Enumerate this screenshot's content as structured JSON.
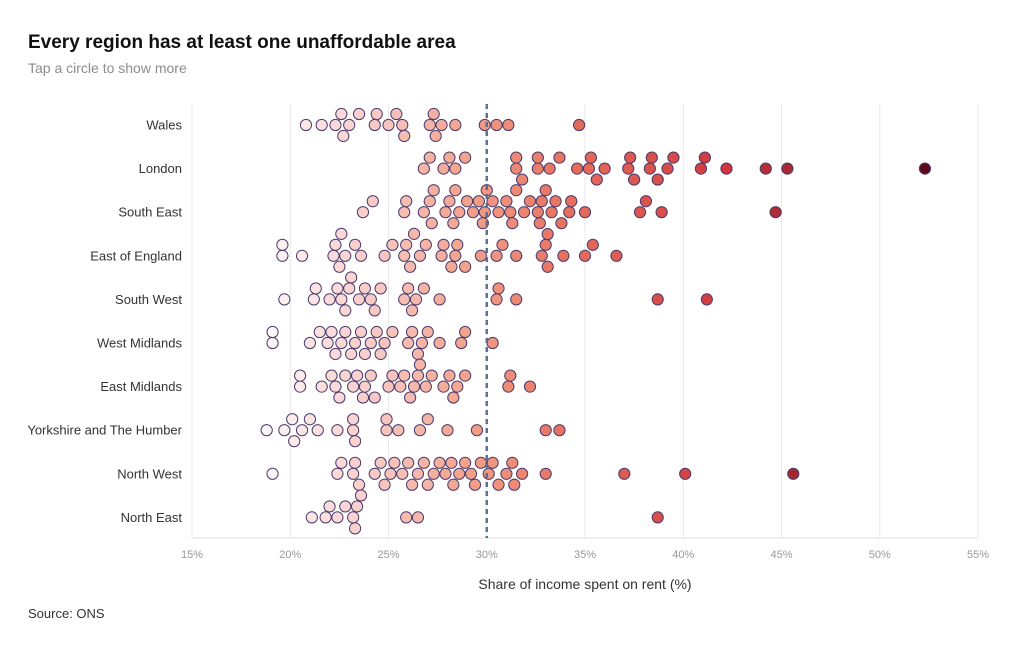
{
  "title": "Every region has at least one unaffordable area",
  "subtitle": "Tap a circle to show more",
  "source": "Source: ONS",
  "chart_data": {
    "type": "scatter",
    "title": "Every region has at least one unaffordable area",
    "xlabel": "Share of income spent on rent (%)",
    "ylabel": "",
    "xlim": [
      15,
      55
    ],
    "xticks": [
      15,
      20,
      25,
      30,
      35,
      40,
      45,
      50,
      55
    ],
    "xtick_labels": [
      "15%",
      "20%",
      "25%",
      "30%",
      "35%",
      "40%",
      "45%",
      "50%",
      "55%"
    ],
    "threshold": 30,
    "grid": true,
    "color_scale": [
      "#ffffff",
      "#f7c6c2",
      "#f2a285",
      "#e8705e",
      "#d03a3e",
      "#5c0a19"
    ],
    "regions": [
      {
        "name": "Wales",
        "values": [
          20.8,
          21.6,
          22.3,
          22.6,
          22.7,
          23.0,
          23.5,
          24.3,
          24.4,
          25.0,
          25.4,
          25.7,
          25.8,
          27.1,
          27.3,
          27.4,
          27.7,
          28.4,
          29.9,
          30.5,
          31.1,
          34.7
        ]
      },
      {
        "name": "London",
        "values": [
          26.8,
          27.1,
          27.8,
          28.1,
          28.4,
          28.9,
          31.5,
          31.5,
          31.8,
          32.6,
          32.6,
          33.2,
          33.7,
          34.6,
          35.2,
          35.3,
          35.6,
          36.0,
          37.2,
          37.3,
          37.5,
          38.3,
          38.4,
          38.7,
          39.2,
          39.5,
          40.9,
          41.1,
          42.2,
          44.2,
          45.3,
          52.3
        ]
      },
      {
        "name": "South East",
        "values": [
          23.7,
          24.2,
          25.8,
          25.9,
          26.8,
          27.1,
          27.2,
          27.3,
          27.9,
          28.1,
          28.3,
          28.4,
          28.6,
          29.0,
          29.3,
          29.6,
          29.8,
          29.9,
          30.0,
          30.3,
          30.6,
          31.0,
          31.2,
          31.3,
          31.5,
          31.9,
          32.2,
          32.6,
          32.7,
          32.8,
          33.0,
          33.1,
          33.3,
          33.5,
          33.8,
          34.2,
          34.3,
          35.0,
          37.8,
          38.1,
          38.9,
          44.7
        ]
      },
      {
        "name": "East of England",
        "values": [
          19.6,
          19.6,
          20.6,
          22.2,
          22.3,
          22.5,
          22.6,
          22.8,
          23.3,
          23.6,
          24.8,
          25.2,
          25.8,
          25.9,
          26.1,
          26.3,
          26.6,
          26.9,
          27.7,
          27.8,
          28.2,
          28.4,
          28.5,
          28.9,
          29.7,
          30.5,
          30.8,
          31.5,
          32.8,
          33.0,
          33.1,
          33.9,
          35.0,
          35.4,
          36.6
        ]
      },
      {
        "name": "South West",
        "values": [
          19.7,
          21.2,
          21.3,
          22.0,
          22.4,
          22.6,
          22.8,
          23.0,
          23.1,
          23.5,
          23.8,
          24.1,
          24.3,
          24.6,
          25.8,
          26.0,
          26.2,
          26.4,
          26.8,
          27.6,
          30.6,
          30.5,
          31.5,
          38.7,
          41.2
        ]
      },
      {
        "name": "West Midlands",
        "values": [
          19.1,
          19.1,
          21.0,
          21.5,
          21.9,
          22.1,
          22.3,
          22.6,
          22.8,
          23.1,
          23.3,
          23.6,
          23.8,
          24.1,
          24.4,
          24.6,
          24.8,
          25.2,
          26.0,
          26.2,
          26.5,
          26.7,
          27.0,
          27.6,
          28.7,
          28.9,
          30.3
        ]
      },
      {
        "name": "East Midlands",
        "values": [
          20.5,
          20.5,
          21.6,
          22.1,
          22.3,
          22.5,
          22.8,
          23.2,
          23.4,
          23.7,
          23.8,
          24.1,
          24.3,
          25.0,
          25.2,
          25.6,
          25.8,
          26.1,
          26.3,
          26.5,
          26.6,
          26.9,
          27.2,
          27.8,
          28.1,
          28.3,
          28.5,
          28.9,
          31.1,
          31.2,
          32.2
        ]
      },
      {
        "name": "Yorkshire and The Humber",
        "values": [
          18.8,
          19.7,
          20.1,
          20.2,
          20.6,
          21.0,
          21.4,
          22.4,
          23.2,
          23.2,
          23.3,
          24.9,
          24.9,
          25.5,
          26.6,
          27.0,
          28.0,
          29.5,
          33.0,
          33.7
        ]
      },
      {
        "name": "North West",
        "values": [
          19.1,
          22.4,
          22.6,
          23.2,
          23.3,
          23.5,
          24.3,
          24.6,
          24.8,
          25.1,
          25.3,
          25.7,
          26.0,
          26.2,
          26.5,
          26.8,
          27.0,
          27.3,
          27.6,
          27.9,
          28.2,
          28.3,
          28.6,
          28.9,
          29.2,
          29.4,
          29.7,
          30.1,
          30.3,
          30.6,
          31.0,
          31.3,
          31.4,
          31.8,
          33.0,
          37.0,
          40.1,
          45.6
        ]
      },
      {
        "name": "North East",
        "values": [
          21.1,
          21.8,
          22.0,
          22.4,
          22.8,
          23.2,
          23.3,
          23.4,
          23.6,
          25.9,
          26.5,
          38.7
        ]
      }
    ]
  }
}
